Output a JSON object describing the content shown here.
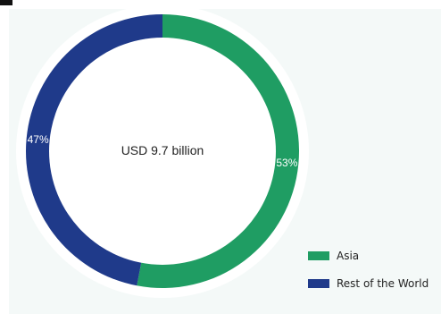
{
  "chart_data": {
    "type": "pie",
    "variant": "donut",
    "center_label": "USD 9.7 billion",
    "categories": [
      "Asia",
      "Rest of the World"
    ],
    "values": [
      53,
      47
    ],
    "labels": [
      "53%",
      "47%"
    ],
    "colors": [
      "#1f9d63",
      "#1f3a8a"
    ],
    "legend": {
      "placement": "bottom-right",
      "items": [
        "Asia",
        "Rest of the World"
      ]
    }
  }
}
